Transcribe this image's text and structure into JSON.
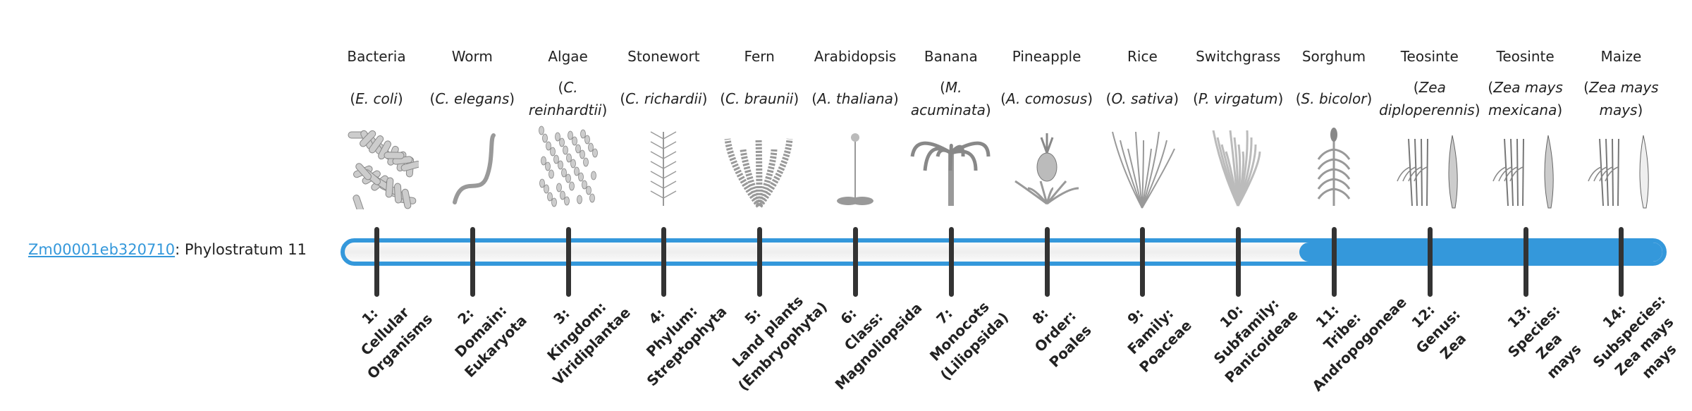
{
  "gene": {
    "id": "Zm00001eb320710",
    "suffix": ": Phylostratum 11",
    "phylostratum": 11
  },
  "colors": {
    "accent": "#3498db",
    "tick": "#333333",
    "illustration": "#999999"
  },
  "organisms": [
    {
      "common": "Bacteria",
      "species": "E. coli",
      "icon": "bacteria-illustration",
      "label": [
        "1:",
        "Cellular",
        "Organisms"
      ]
    },
    {
      "common": "Worm",
      "species": "C. elegans",
      "icon": "worm-illustration",
      "label": [
        "2:",
        "Domain:",
        "Eukaryota"
      ]
    },
    {
      "common": "Algae",
      "species": "C. reinhardtii",
      "icon": "algae-illustration",
      "label": [
        "3:",
        "Kingdom:",
        "Viridiplantae"
      ]
    },
    {
      "common": "Stonewort",
      "species": "C. richardii",
      "icon": "stonewort-illustration",
      "label": [
        "4:",
        "Phylum:",
        "Streptophyta"
      ]
    },
    {
      "common": "Fern",
      "species": "C. braunii",
      "icon": "fern-illustration",
      "label": [
        "5:",
        "Land plants",
        "(Embryophyta)"
      ]
    },
    {
      "common": "Arabidopsis",
      "species": "A. thaliana",
      "icon": "arabidopsis-illustration",
      "label": [
        "6:",
        "Class:",
        "Magnoliopsida"
      ]
    },
    {
      "common": "Banana",
      "species": "M. acuminata",
      "icon": "banana-illustration",
      "label": [
        "7:",
        "Monocots",
        "(Liliopsida)"
      ]
    },
    {
      "common": "Pineapple",
      "species": "A. comosus",
      "icon": "pineapple-illustration",
      "label": [
        "8:",
        "Order:",
        "Poales"
      ]
    },
    {
      "common": "Rice",
      "species": "O. sativa",
      "icon": "rice-illustration",
      "label": [
        "9:",
        "Family:",
        "Poaceae"
      ]
    },
    {
      "common": "Switchgrass",
      "species": "P. virgatum",
      "icon": "switchgrass-illustration",
      "label": [
        "10:",
        "Subfamily:",
        "Panicoideae"
      ]
    },
    {
      "common": "Sorghum",
      "species": "S. bicolor",
      "icon": "sorghum-illustration",
      "label": [
        "11:",
        "Tribe:",
        "Andropogoneae"
      ]
    },
    {
      "common": "Teosinte",
      "species": "Zea diploperennis",
      "icon": "teosinte-illustration",
      "label": [
        "12:",
        "Genus:",
        "Zea"
      ]
    },
    {
      "common": "Teosinte",
      "species": "Zea mays mexicana",
      "icon": "teosinte-mexicana-illustration",
      "label": [
        "13:",
        "Species:",
        "Zea",
        "mays"
      ]
    },
    {
      "common": "Maize",
      "species": "Zea mays mays",
      "icon": "maize-illustration",
      "label": [
        "14:",
        "Subspecies:",
        "Zea mays",
        "mays"
      ]
    }
  ]
}
